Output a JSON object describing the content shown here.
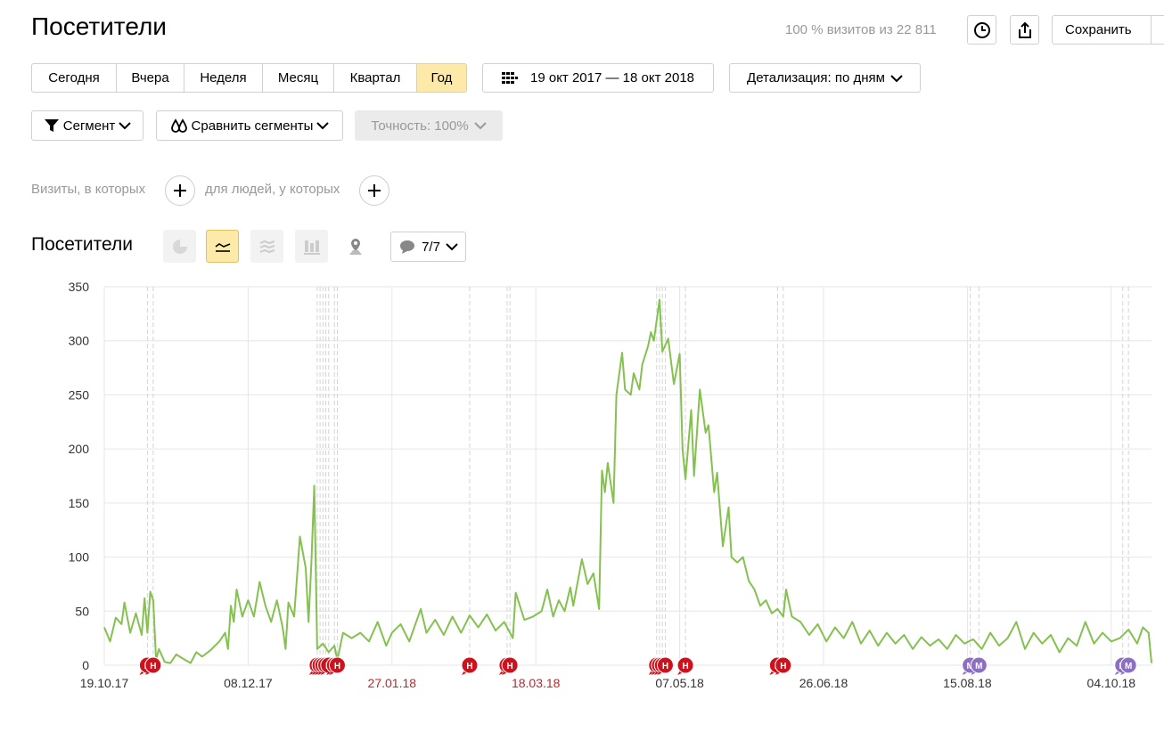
{
  "header": {
    "title": "Посетители",
    "visits_info": "100 % визитов из 22 811",
    "save": "Сохранить"
  },
  "periods": [
    "Сегодня",
    "Вчера",
    "Неделя",
    "Месяц",
    "Квартал",
    "Год"
  ],
  "active_period": 5,
  "date_range": "19 окт 2017 — 18 окт 2018",
  "detail": "Детализация: по дням",
  "segment": "Сегмент",
  "compare": "Сравнить сегменты",
  "accuracy": "Точность: 100%",
  "filters": [
    "Визиты, в которых",
    "для людей, у которых"
  ],
  "section_title": "Посетители",
  "notes_toggle": "7/7",
  "chart_data": {
    "type": "line",
    "color": "#85c150",
    "grid": true,
    "xlim": [
      "2017-10-19",
      "2018-10-18"
    ],
    "xticks": [
      {
        "value": "2017-10-19",
        "label": "19.10.17"
      },
      {
        "value": "2017-12-08",
        "label": "08.12.17"
      },
      {
        "value": "2018-01-27",
        "label": "27.01.18"
      },
      {
        "value": "2018-03-18",
        "label": "18.03.18"
      },
      {
        "value": "2018-05-07",
        "label": "07.05.18"
      },
      {
        "value": "2018-06-26",
        "label": "26.06.18"
      },
      {
        "value": "2018-08-15",
        "label": "15.08.18"
      },
      {
        "value": "2018-10-04",
        "label": "04.10.18"
      }
    ],
    "xtick_label_colors": [
      "#333333",
      "#333333",
      "#c0262d",
      "#c0262d",
      "#333333",
      "#333333",
      "#333333",
      "#333333"
    ],
    "ylim": [
      0,
      350
    ],
    "yticks": [
      0,
      50,
      100,
      150,
      200,
      250,
      300,
      350
    ],
    "x": [
      "2017-10-19",
      "2017-10-21",
      "2017-10-23",
      "2017-10-25",
      "2017-10-26",
      "2017-10-28",
      "2017-10-30",
      "2017-11-01",
      "2017-11-02",
      "2017-11-03",
      "2017-11-04",
      "2017-11-05",
      "2017-11-06",
      "2017-11-07",
      "2017-11-09",
      "2017-11-11",
      "2017-11-13",
      "2017-11-16",
      "2017-11-18",
      "2017-11-20",
      "2017-11-22",
      "2017-11-25",
      "2017-11-28",
      "2017-11-30",
      "2017-12-01",
      "2017-12-02",
      "2017-12-03",
      "2017-12-04",
      "2017-12-06",
      "2017-12-08",
      "2017-12-10",
      "2017-12-12",
      "2017-12-14",
      "2017-12-16",
      "2017-12-18",
      "2017-12-20",
      "2017-12-21",
      "2017-12-22",
      "2017-12-24",
      "2017-12-26",
      "2017-12-28",
      "2017-12-29",
      "2017-12-30",
      "2017-12-31",
      "2018-01-01",
      "2018-01-03",
      "2018-01-05",
      "2018-01-07",
      "2018-01-08",
      "2018-01-10",
      "2018-01-13",
      "2018-01-16",
      "2018-01-19",
      "2018-01-22",
      "2018-01-25",
      "2018-01-27",
      "2018-01-30",
      "2018-02-02",
      "2018-02-06",
      "2018-02-08",
      "2018-02-11",
      "2018-02-14",
      "2018-02-17",
      "2018-02-20",
      "2018-02-23",
      "2018-02-26",
      "2018-03-01",
      "2018-03-04",
      "2018-03-07",
      "2018-03-10",
      "2018-03-11",
      "2018-03-14",
      "2018-03-17",
      "2018-03-20",
      "2018-03-22",
      "2018-03-24",
      "2018-03-26",
      "2018-03-28",
      "2018-03-30",
      "2018-03-31",
      "2018-04-03",
      "2018-04-05",
      "2018-04-07",
      "2018-04-09",
      "2018-04-10",
      "2018-04-11",
      "2018-04-12",
      "2018-04-14",
      "2018-04-15",
      "2018-04-17",
      "2018-04-18",
      "2018-04-20",
      "2018-04-21",
      "2018-04-23",
      "2018-04-24",
      "2018-04-26",
      "2018-04-27",
      "2018-04-28",
      "2018-04-30",
      "2018-05-01",
      "2018-05-03",
      "2018-05-05",
      "2018-05-07",
      "2018-05-08",
      "2018-05-09",
      "2018-05-11",
      "2018-05-12",
      "2018-05-14",
      "2018-05-16",
      "2018-05-17",
      "2018-05-19",
      "2018-05-20",
      "2018-05-22",
      "2018-05-24",
      "2018-05-25",
      "2018-05-27",
      "2018-05-29",
      "2018-05-31",
      "2018-06-02",
      "2018-06-04",
      "2018-06-06",
      "2018-06-08",
      "2018-06-10",
      "2018-06-12",
      "2018-06-13",
      "2018-06-15",
      "2018-06-18",
      "2018-06-21",
      "2018-06-24",
      "2018-06-27",
      "2018-06-30",
      "2018-07-03",
      "2018-07-06",
      "2018-07-09",
      "2018-07-12",
      "2018-07-15",
      "2018-07-18",
      "2018-07-21",
      "2018-07-24",
      "2018-07-27",
      "2018-07-30",
      "2018-08-02",
      "2018-08-05",
      "2018-08-08",
      "2018-08-11",
      "2018-08-14",
      "2018-08-17",
      "2018-08-20",
      "2018-08-23",
      "2018-08-26",
      "2018-08-29",
      "2018-09-01",
      "2018-09-04",
      "2018-09-07",
      "2018-09-10",
      "2018-09-13",
      "2018-09-16",
      "2018-09-19",
      "2018-09-22",
      "2018-09-25",
      "2018-09-28",
      "2018-10-01",
      "2018-10-04",
      "2018-10-07",
      "2018-10-10",
      "2018-10-13",
      "2018-10-15",
      "2018-10-17",
      "2018-10-18"
    ],
    "values": [
      35,
      22,
      44,
      38,
      58,
      30,
      48,
      28,
      62,
      30,
      68,
      60,
      5,
      15,
      3,
      2,
      10,
      5,
      2,
      12,
      8,
      14,
      22,
      30,
      15,
      55,
      40,
      70,
      45,
      60,
      45,
      77,
      55,
      40,
      60,
      35,
      15,
      58,
      45,
      119,
      90,
      40,
      95,
      166,
      15,
      20,
      12,
      18,
      5,
      30,
      25,
      30,
      22,
      40,
      18,
      30,
      38,
      22,
      52,
      30,
      42,
      28,
      45,
      30,
      46,
      35,
      47,
      32,
      40,
      25,
      67,
      42,
      45,
      50,
      70,
      45,
      60,
      50,
      72,
      55,
      98,
      75,
      85,
      52,
      180,
      160,
      187,
      150,
      250,
      289,
      255,
      250,
      270,
      255,
      278,
      295,
      308,
      300,
      338,
      290,
      302,
      260,
      288,
      200,
      172,
      236,
      175,
      255,
      215,
      222,
      160,
      178,
      110,
      146,
      100,
      95,
      100,
      78,
      70,
      55,
      60,
      48,
      52,
      45,
      70,
      45,
      40,
      28,
      38,
      22,
      35,
      25,
      40,
      20,
      32,
      18,
      30,
      20,
      28,
      15,
      26,
      18,
      24,
      15,
      28,
      20,
      24,
      15,
      30,
      18,
      25,
      40,
      15,
      30,
      20,
      28,
      12,
      25,
      18,
      40,
      20,
      30,
      22,
      25,
      33,
      20,
      35,
      30,
      2
    ],
    "notes": [
      {
        "x": "2017-11-03",
        "label": "Н",
        "color": "#d0101b"
      },
      {
        "x": "2017-11-05",
        "label": "Н",
        "color": "#d0101b"
      },
      {
        "x": "2018-01-01",
        "label": "Н",
        "color": "#d0101b"
      },
      {
        "x": "2018-01-02",
        "label": "Н",
        "color": "#d0101b"
      },
      {
        "x": "2018-01-03",
        "label": "Н",
        "color": "#d0101b"
      },
      {
        "x": "2018-01-04",
        "label": "Н",
        "color": "#d0101b"
      },
      {
        "x": "2018-01-05",
        "label": "Н",
        "color": "#d0101b"
      },
      {
        "x": "2018-01-07",
        "label": "Н",
        "color": "#d0101b"
      },
      {
        "x": "2018-01-08",
        "label": "Н",
        "color": "#d0101b"
      },
      {
        "x": "2018-02-23",
        "label": "Н",
        "color": "#d0101b"
      },
      {
        "x": "2018-03-08",
        "label": "Н",
        "color": "#d0101b"
      },
      {
        "x": "2018-03-09",
        "label": "Н",
        "color": "#d0101b"
      },
      {
        "x": "2018-04-29",
        "label": "Н",
        "color": "#d0101b"
      },
      {
        "x": "2018-04-30",
        "label": "Н",
        "color": "#d0101b"
      },
      {
        "x": "2018-05-01",
        "label": "Н",
        "color": "#d0101b"
      },
      {
        "x": "2018-05-02",
        "label": "Н",
        "color": "#d0101b"
      },
      {
        "x": "2018-05-09",
        "label": "Н",
        "color": "#d0101b"
      },
      {
        "x": "2018-06-10",
        "label": "Н",
        "color": "#d0101b"
      },
      {
        "x": "2018-06-12",
        "label": "Н",
        "color": "#d0101b"
      },
      {
        "x": "2018-08-16",
        "label": "М",
        "color": "#8c6fc2"
      },
      {
        "x": "2018-08-19",
        "label": "М",
        "color": "#8c6fc2"
      },
      {
        "x": "2018-10-08",
        "label": "М",
        "color": "#8c6fc2"
      },
      {
        "x": "2018-10-10",
        "label": "М",
        "color": "#8c6fc2"
      }
    ]
  }
}
